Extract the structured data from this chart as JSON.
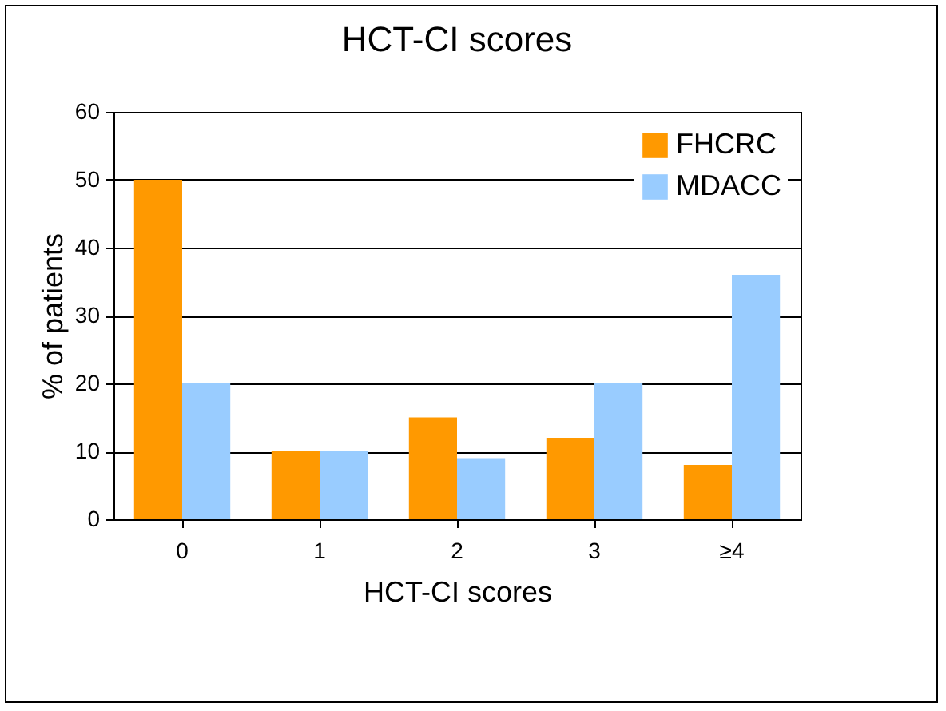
{
  "chart_data": {
    "type": "bar",
    "title": "HCT-CI scores",
    "xlabel": "HCT-CI scores",
    "ylabel": "% of patients",
    "categories": [
      "0",
      "1",
      "2",
      "3",
      "≥4"
    ],
    "series": [
      {
        "name": "FHCRC",
        "color": "#ff9900",
        "values": [
          50,
          10,
          15,
          12,
          8
        ]
      },
      {
        "name": "MDACC",
        "color": "#99ccff",
        "values": [
          20,
          10,
          9,
          20,
          36
        ]
      }
    ],
    "ylim": [
      0,
      60
    ],
    "yticks": [
      0,
      10,
      20,
      30,
      40,
      50,
      60
    ],
    "grid": "y",
    "legend": "top right"
  }
}
